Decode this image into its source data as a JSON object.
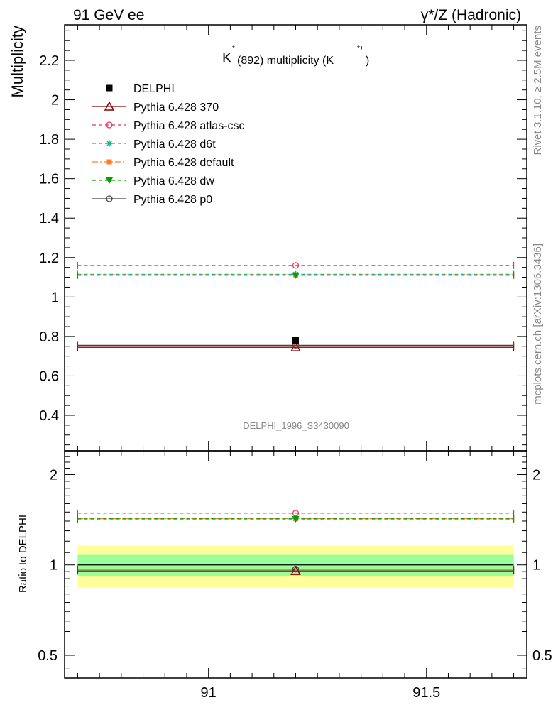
{
  "header": {
    "left": "91 GeV ee",
    "right": "γ*/Z (Hadronic)"
  },
  "side": {
    "top": "Rivet 3.1.10, ≥ 2.5M events",
    "bottom": "mcplots.cern.ch [arXiv:1306.3436]"
  },
  "chart_data": {
    "type": "scatter",
    "title_main": "K",
    "title_sup": "*",
    "title_rest": "(892) multiplicity (K",
    "title_sup2": "*±",
    "title_close": ")",
    "ylabel": "Multiplicity",
    "ratio_ylabel": "Ratio to DELPHI",
    "watermark": "DELPHI_1996_S3430090",
    "xlim": [
      90.67,
      91.73
    ],
    "ylim": [
      0.22,
      2.38
    ],
    "ratio_ylim_log": [
      0.42,
      2.4
    ],
    "xticks": [
      "91",
      "91.5"
    ],
    "yticks": [
      "0.4",
      "0.6",
      "0.8",
      "1",
      "1.2",
      "1.4",
      "1.6",
      "1.8",
      "2",
      "2.2"
    ],
    "ratio_yticks": [
      "0.5",
      "1",
      "2"
    ],
    "data": {
      "name": "DELPHI",
      "x": 91.2,
      "y": 0.78,
      "color": "#000000"
    },
    "series": [
      {
        "name": "Pythia 6.428 370",
        "y": 0.745,
        "color": "#8b0000",
        "dash": "",
        "marker": "triangle-open"
      },
      {
        "name": "Pythia 6.428 atlas-csc",
        "y": 1.16,
        "color": "#ee3355",
        "dash": "5,4",
        "marker": "circle-open"
      },
      {
        "name": "Pythia 6.428 d6t",
        "y": 1.115,
        "color": "#00bb99",
        "dash": "5,4",
        "marker": "star"
      },
      {
        "name": "Pythia 6.428 default",
        "y": 1.112,
        "color": "#ff7f27",
        "dash": "8,3,2,3",
        "marker": "square"
      },
      {
        "name": "Pythia 6.428 dw",
        "y": 1.11,
        "color": "#00a000",
        "dash": "5,4",
        "marker": "triangle-down"
      },
      {
        "name": "Pythia 6.428 p0",
        "y": 0.755,
        "color": "#444444",
        "dash": "",
        "marker": "circle-open"
      }
    ],
    "x_low": 90.7,
    "x_high": 91.7,
    "ratio_band_inner": [
      0.92,
      1.08
    ],
    "ratio_band_outer": [
      0.84,
      1.16
    ]
  }
}
